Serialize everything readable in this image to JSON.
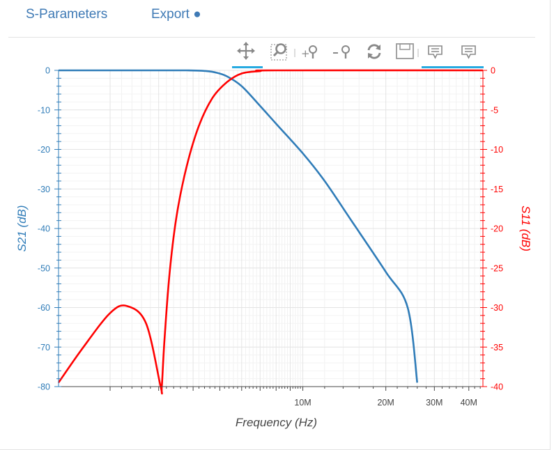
{
  "tabs": {
    "sparams_label": "S-Parameters",
    "export_label": "Export ●"
  },
  "toolbar": {
    "tools": [
      "pan-tool",
      "box-zoom-tool",
      "zoom-in-tool",
      "zoom-out-tool",
      "reset-tool",
      "save-tool",
      "hover-tool-1",
      "hover-tool-2"
    ]
  },
  "colors": {
    "s21": "#2f7cb8",
    "s11": "#ff0000",
    "accent": "#26aae1",
    "tab_text": "#3f7ab5"
  },
  "chart_data": {
    "type": "line",
    "xlabel": "Frequency (Hz)",
    "ylabel_left": "S21 (dB)",
    "ylabel_right": "S11 (dB)",
    "x_scale": "log",
    "xlim_hz": [
      1300000,
      45000000
    ],
    "ylim_left": [
      -80,
      0
    ],
    "ylim_right": [
      -40,
      0
    ],
    "x_tick_labels": [
      {
        "value": 10000000,
        "label": "10M"
      },
      {
        "value": 20000000,
        "label": "20M"
      },
      {
        "value": 30000000,
        "label": "30M"
      },
      {
        "value": 40000000,
        "label": "40M"
      }
    ],
    "y_left_ticks": [
      0,
      -10,
      -20,
      -30,
      -40,
      -50,
      -60,
      -70,
      -80
    ],
    "y_right_ticks": [
      0,
      -5,
      -10,
      -15,
      -20,
      -25,
      -30,
      -35,
      -40
    ],
    "grid": true,
    "series": [
      {
        "name": "S21",
        "axis": "left",
        "x": [
          1300000,
          2000000,
          3000000,
          3800000,
          4300000,
          4800000,
          5300000,
          6000000,
          7000000,
          8000000,
          10000000,
          12000000,
          15000000,
          20000000,
          24000000,
          26000000
        ],
        "y": [
          0,
          0,
          0,
          0,
          -0.1,
          -0.5,
          -1.5,
          -4,
          -9,
          -13.5,
          -21,
          -28,
          -38,
          -51,
          -60,
          -79
        ]
      },
      {
        "name": "S11",
        "axis": "right",
        "x": [
          1300000,
          1600000,
          2000000,
          2300000,
          2700000,
          3050000,
          3080000,
          3150000,
          3300000,
          3500000,
          3800000,
          4200000,
          4700000,
          5300000,
          6000000,
          7000000,
          8000000,
          45000000
        ],
        "y": [
          -39.5,
          -35,
          -30.7,
          -29.8,
          -32,
          -40,
          -40,
          -34,
          -25,
          -18,
          -12,
          -7,
          -3.5,
          -1.5,
          -0.4,
          -0.1,
          0,
          0
        ]
      }
    ]
  }
}
